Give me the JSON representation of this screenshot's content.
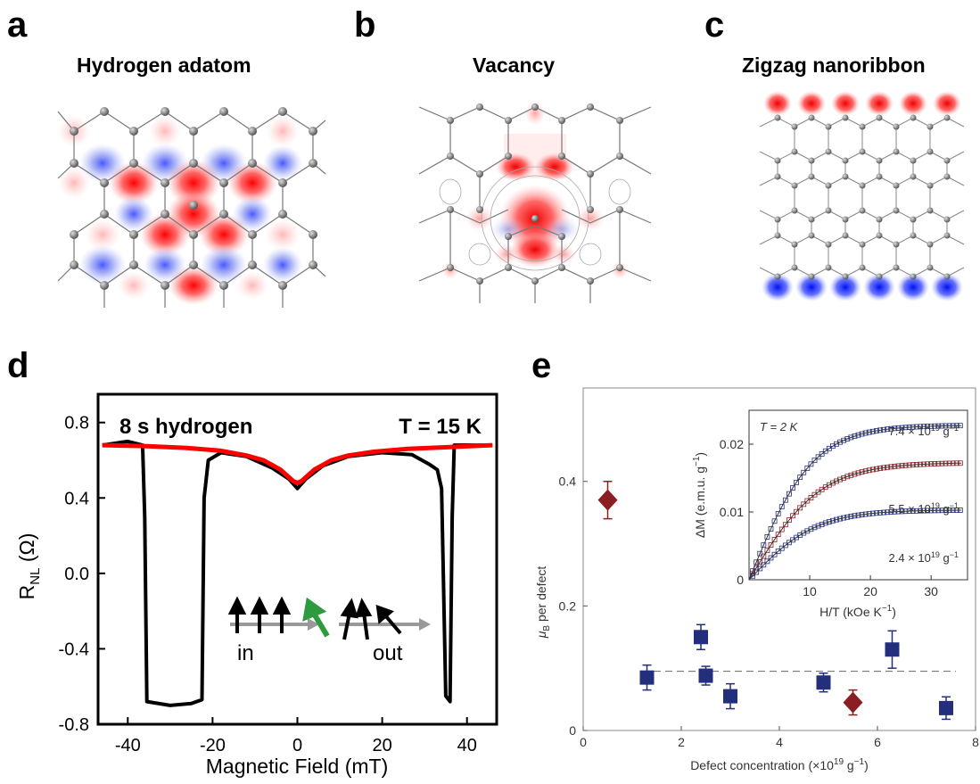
{
  "panels": {
    "a": {
      "letter": "a",
      "title": "Hydrogen adatom"
    },
    "b": {
      "letter": "b",
      "title": "Vacancy"
    },
    "c": {
      "letter": "c",
      "title": "Zigzag nanoribbon"
    },
    "d": {
      "letter": "d"
    },
    "e": {
      "letter": "e"
    }
  },
  "chart_data": [
    {
      "panel": "d",
      "type": "line",
      "annotation_left": "8 s hydrogen",
      "annotation_right": "T = 15 K",
      "xlabel": "Magnetic Field (mT)",
      "ylabel_main": "R",
      "ylabel_sub": "NL",
      "ylabel_unit": " (Ω)",
      "xlim": [
        -47,
        47
      ],
      "ylim": [
        -0.8,
        0.95
      ],
      "xticks": [
        -40,
        -20,
        0,
        20,
        40
      ],
      "yticks": [
        0.8,
        0.4,
        0.0,
        -0.4,
        -0.8
      ],
      "ytick_labels": [
        "0.8",
        "0.4",
        "0.0",
        "-0.4",
        "-0.8"
      ],
      "inset_labels": {
        "in": "in",
        "out": "out"
      },
      "series": [
        {
          "color": "#000000",
          "points": [
            [
              -46,
              0.68
            ],
            [
              -40,
              0.7
            ],
            [
              -36.5,
              0.68
            ],
            [
              -36,
              0.3
            ],
            [
              -35.5,
              -0.68
            ],
            [
              -30,
              -0.7
            ],
            [
              -25,
              -0.69
            ],
            [
              -22.5,
              -0.67
            ],
            [
              -22,
              0.4
            ],
            [
              -21,
              0.6
            ],
            [
              -18,
              0.64
            ],
            [
              -12,
              0.62
            ],
            [
              -6,
              0.56
            ],
            [
              -2,
              0.5
            ],
            [
              0,
              0.45
            ],
            [
              2,
              0.5
            ],
            [
              6,
              0.57
            ],
            [
              12,
              0.62
            ],
            [
              20,
              0.64
            ],
            [
              27,
              0.63
            ],
            [
              31,
              0.58
            ],
            [
              33,
              0.55
            ],
            [
              34,
              0.45
            ],
            [
              35,
              -0.65
            ],
            [
              36,
              -0.68
            ],
            [
              36.5,
              0.3
            ],
            [
              37,
              0.68
            ],
            [
              40,
              0.68
            ],
            [
              46,
              0.68
            ]
          ]
        },
        {
          "color": "#ff0000",
          "points": [
            [
              -46,
              0.68
            ],
            [
              -36,
              0.675
            ],
            [
              -26,
              0.665
            ],
            [
              -18,
              0.65
            ],
            [
              -12,
              0.625
            ],
            [
              -8,
              0.6
            ],
            [
              -4,
              0.55
            ],
            [
              -1,
              0.49
            ],
            [
              0,
              0.48
            ],
            [
              1,
              0.49
            ],
            [
              4,
              0.55
            ],
            [
              8,
              0.6
            ],
            [
              12,
              0.625
            ],
            [
              18,
              0.645
            ],
            [
              26,
              0.66
            ],
            [
              36,
              0.67
            ],
            [
              46,
              0.68
            ]
          ]
        }
      ]
    },
    {
      "panel": "e",
      "type": "scatter",
      "xlabel": "Defect concentration (×10",
      "xlabel_sup": "19",
      "xlabel_tail": " g",
      "xlabel_tail_sup": "−1",
      "xlabel_close": ")",
      "ylabel": "μ",
      "ylabel_sub": "B",
      "ylabel_tail": " per defect",
      "xlim": [
        0,
        8
      ],
      "ylim": [
        0,
        0.55
      ],
      "xticks": [
        0,
        2,
        4,
        6,
        8
      ],
      "yticks": [
        0,
        0.2,
        0.4
      ],
      "ytick_labels": [
        "0",
        "0.2",
        "0.4"
      ],
      "dashed_line": {
        "y": 0.095,
        "x_from": 1.2,
        "x_to": 7.6
      },
      "series": [
        {
          "marker": "square",
          "color": "#232f7d",
          "points": [
            [
              1.3,
              0.085,
              0.02
            ],
            [
              2.4,
              0.15,
              0.02
            ],
            [
              2.5,
              0.088,
              0.015
            ],
            [
              3.0,
              0.055,
              0.02
            ],
            [
              4.9,
              0.077,
              0.015
            ],
            [
              6.3,
              0.13,
              0.03
            ],
            [
              7.4,
              0.036,
              0.018
            ]
          ]
        },
        {
          "marker": "diamond",
          "color": "#8b1e23",
          "points": [
            [
              0.5,
              0.37,
              0.03
            ],
            [
              5.5,
              0.045,
              0.02
            ]
          ]
        }
      ],
      "inset": {
        "annotation": "T = 2 K",
        "xlabel": "H/T (kOe K",
        "xlabel_sup": "−1",
        "xlabel_close": ")",
        "ylabel": "ΔM (e.m.u. g",
        "ylabel_sup": "−1",
        "ylabel_close": ")",
        "xlim": [
          0,
          36
        ],
        "ylim": [
          0,
          0.025
        ],
        "xticks": [
          10,
          20,
          30
        ],
        "yticks": [
          0,
          0.01,
          0.02
        ],
        "ytick_labels": [
          "0",
          "0.01",
          "0.02"
        ],
        "curves": [
          {
            "label": "7.4 × 10",
            "label_sup": "19",
            "label_tail": " g",
            "label_tail_sup": "−1",
            "color": "#232f7d",
            "saturation": 0.0228,
            "k": 0.095
          },
          {
            "label": "",
            "color": "#8b1e23",
            "saturation": 0.0173,
            "k": 0.085
          },
          {
            "label": "5.5 × 10",
            "label_sup": "19",
            "label_tail": " g",
            "label_tail_sup": "−1",
            "color": "#232f7d",
            "saturation": 0.0103,
            "k": 0.09
          },
          {
            "label": "2.4 × 10",
            "label_sup": "19",
            "label_tail": " g",
            "label_tail_sup": "−1",
            "color": "#232f7d",
            "saturation": 0.0,
            "k": 0.0
          }
        ]
      }
    }
  ]
}
